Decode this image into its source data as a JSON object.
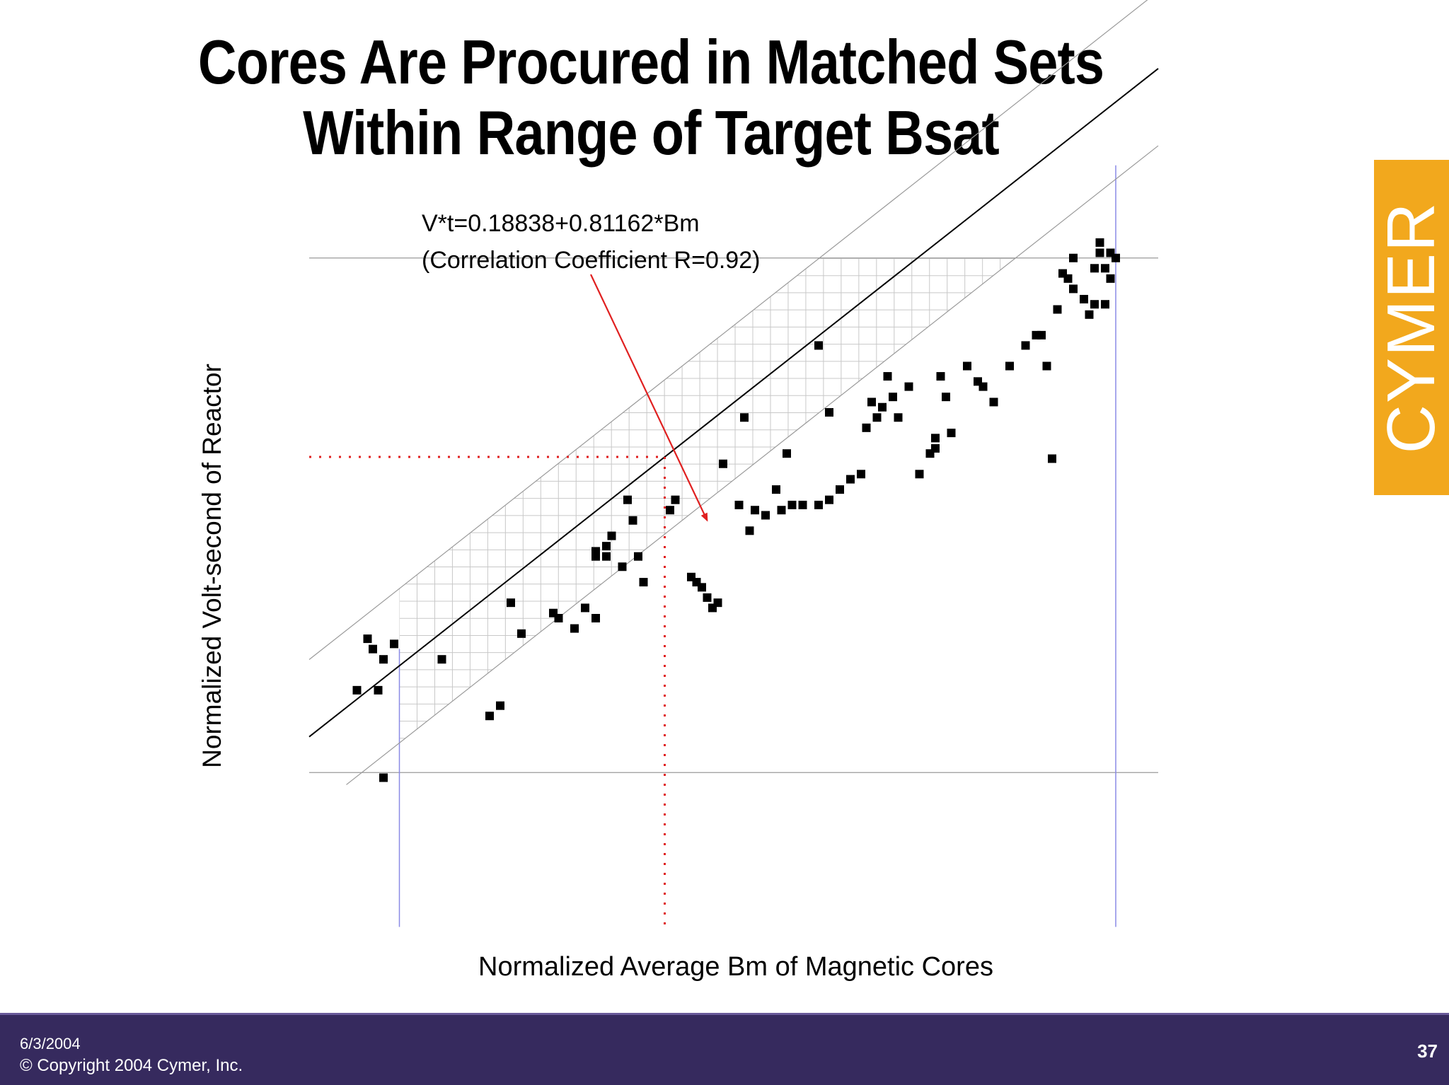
{
  "slide": {
    "title_line1": "Cores Are Procured in Matched Sets",
    "title_line2": "Within Range of Target Bsat",
    "logo_text": "CYMER",
    "logo_color": "#f2a81d"
  },
  "footer": {
    "date": "6/3/2004",
    "copyright": "© Copyright 2004 Cymer, Inc.",
    "page_number": "37",
    "background_color": "#362a5e"
  },
  "chart_data": {
    "type": "scatter",
    "title": "",
    "xlabel": "Normalized Average Bm of Magnetic Cores",
    "ylabel": "Normalized Volt-second of Reactor",
    "annotation_line1": "V*t=0.18838+0.81162*Bm",
    "annotation_line2": "(Correlation Coefficient R=0.92)",
    "regression": {
      "intercept": 0.18838,
      "slope": 0.81162
    },
    "correlation_r": 0.92,
    "tick_labels_shown": false,
    "grid": true,
    "colors": {
      "points": "#000000",
      "regression": "#000000",
      "band": "#9a9a9a",
      "limits": "#8a8ae6",
      "target": "#e02020",
      "arrow": "#e02020"
    },
    "points": [
      [
        0.19,
        0.36
      ],
      [
        0.21,
        0.46
      ],
      [
        0.22,
        0.44
      ],
      [
        0.23,
        0.36
      ],
      [
        0.24,
        0.42
      ],
      [
        0.26,
        0.45
      ],
      [
        0.24,
        0.19
      ],
      [
        0.35,
        0.42
      ],
      [
        0.44,
        0.31
      ],
      [
        0.46,
        0.33
      ],
      [
        0.48,
        0.53
      ],
      [
        0.5,
        0.47
      ],
      [
        0.56,
        0.51
      ],
      [
        0.57,
        0.5
      ],
      [
        0.6,
        0.48
      ],
      [
        0.62,
        0.52
      ],
      [
        0.64,
        0.5
      ],
      [
        0.64,
        0.63
      ],
      [
        0.64,
        0.62
      ],
      [
        0.66,
        0.64
      ],
      [
        0.66,
        0.62
      ],
      [
        0.67,
        0.66
      ],
      [
        0.69,
        0.6
      ],
      [
        0.7,
        0.73
      ],
      [
        0.71,
        0.69
      ],
      [
        0.72,
        0.62
      ],
      [
        0.73,
        0.57
      ],
      [
        0.78,
        0.71
      ],
      [
        0.79,
        0.73
      ],
      [
        0.82,
        0.58
      ],
      [
        0.83,
        0.57
      ],
      [
        0.84,
        0.56
      ],
      [
        0.85,
        0.54
      ],
      [
        0.86,
        0.52
      ],
      [
        0.87,
        0.53
      ],
      [
        0.88,
        0.8
      ],
      [
        0.91,
        0.72
      ],
      [
        0.92,
        0.89
      ],
      [
        0.93,
        0.67
      ],
      [
        0.94,
        0.71
      ],
      [
        0.96,
        0.7
      ],
      [
        0.98,
        0.75
      ],
      [
        0.99,
        0.71
      ],
      [
        1.0,
        0.82
      ],
      [
        1.01,
        0.72
      ],
      [
        1.03,
        0.72
      ],
      [
        1.06,
        0.72
      ],
      [
        1.08,
        0.73
      ],
      [
        1.06,
        1.03
      ],
      [
        1.08,
        0.9
      ],
      [
        1.1,
        0.75
      ],
      [
        1.12,
        0.77
      ],
      [
        1.14,
        0.78
      ],
      [
        1.15,
        0.87
      ],
      [
        1.16,
        0.92
      ],
      [
        1.17,
        0.89
      ],
      [
        1.18,
        0.91
      ],
      [
        1.19,
        0.97
      ],
      [
        1.2,
        0.93
      ],
      [
        1.21,
        0.89
      ],
      [
        1.23,
        0.95
      ],
      [
        1.25,
        0.78
      ],
      [
        1.27,
        0.82
      ],
      [
        1.28,
        0.83
      ],
      [
        1.28,
        0.85
      ],
      [
        1.29,
        0.97
      ],
      [
        1.3,
        0.93
      ],
      [
        1.31,
        0.86
      ],
      [
        1.34,
        0.99
      ],
      [
        1.36,
        0.96
      ],
      [
        1.37,
        0.95
      ],
      [
        1.39,
        0.92
      ],
      [
        1.42,
        0.99
      ],
      [
        1.45,
        1.03
      ],
      [
        1.47,
        1.05
      ],
      [
        1.48,
        1.05
      ],
      [
        1.49,
        0.99
      ],
      [
        1.5,
        0.81
      ],
      [
        1.51,
        1.1
      ],
      [
        1.52,
        1.17
      ],
      [
        1.53,
        1.16
      ],
      [
        1.54,
        1.14
      ],
      [
        1.54,
        1.2
      ],
      [
        1.56,
        1.12
      ],
      [
        1.57,
        1.09
      ],
      [
        1.58,
        1.18
      ],
      [
        1.58,
        1.11
      ],
      [
        1.59,
        1.21
      ],
      [
        1.59,
        1.23
      ],
      [
        1.6,
        1.11
      ],
      [
        1.6,
        1.18
      ],
      [
        1.61,
        1.21
      ],
      [
        1.61,
        1.16
      ],
      [
        1.62,
        1.2
      ]
    ]
  }
}
